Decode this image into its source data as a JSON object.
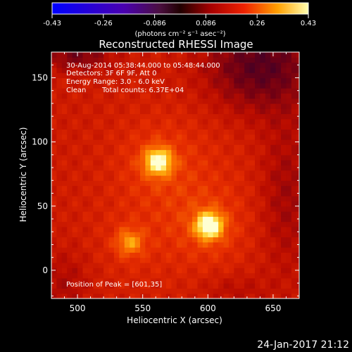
{
  "chart_data": {
    "type": "heatmap",
    "title": "Reconstructed RHESSI Image",
    "xlabel": "Heliocentric X (arcsec)",
    "ylabel": "Heliocentric Y (arcsec)",
    "xlim": [
      480,
      670
    ],
    "ylim": [
      -22,
      170
    ],
    "xticks": [
      500,
      550,
      600,
      650
    ],
    "yticks": [
      0,
      50,
      100,
      150
    ],
    "colorbar": {
      "min": -0.43,
      "max": 0.43,
      "ticks": [
        "-0.43",
        "-0.26",
        "-0.086",
        "0.086",
        "0.26",
        "0.43"
      ],
      "unit_label": "(photons cm⁻² s⁻¹ asec⁻²)"
    },
    "annotations": {
      "time_range": "30-Aug-2014 05:38:44.000 to 05:48:44.000",
      "detectors": "Detectors: 3F 6F 9F, Att 0",
      "energy_range": "Energy Range: 3.0 - 6.0 keV",
      "method": "Clean",
      "total_counts": "Total counts: 6.37E+04",
      "peak_position": "Position of Peak = [601,35]"
    },
    "sources": [
      {
        "x": 601,
        "y": 35,
        "value": 0.43
      },
      {
        "x": 562,
        "y": 85,
        "value": 0.38
      },
      {
        "x": 540,
        "y": 22,
        "value": 0.2
      }
    ]
  },
  "footer": {
    "date": "24-Jan-2017 21:12"
  },
  "colors": {
    "background": "#000000",
    "text": "#ffffff"
  }
}
